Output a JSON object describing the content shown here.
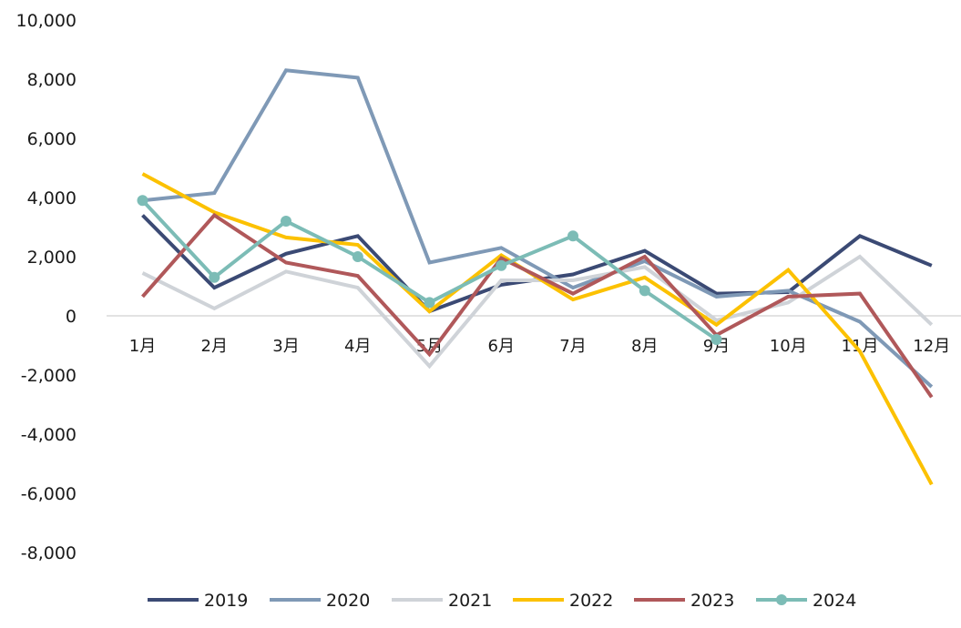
{
  "chart_data": {
    "type": "line",
    "categories": [
      "1月",
      "2月",
      "3月",
      "4月",
      "5月",
      "6月",
      "7月",
      "8月",
      "9月",
      "10月",
      "11月",
      "12月"
    ],
    "ylim": [
      -8000,
      10000
    ],
    "yticks": [
      10000,
      8000,
      6000,
      4000,
      2000,
      0,
      -2000,
      -4000,
      -6000,
      -8000
    ],
    "ytick_labels": [
      "10,000",
      "8,000",
      "6,000",
      "4,000",
      "2,000",
      "0",
      "-2,000",
      "-4,000",
      "-6,000",
      "-8,000"
    ],
    "grid": false,
    "legend": "bottom",
    "series": [
      {
        "name": "2019",
        "color": "#3b4a74",
        "marker": false,
        "values": [
          3400,
          950,
          2100,
          2700,
          150,
          1050,
          1400,
          2200,
          750,
          800,
          2700,
          1700
        ]
      },
      {
        "name": "2020",
        "color": "#7f99b6",
        "marker": false,
        "values": [
          3900,
          4150,
          8300,
          8050,
          1800,
          2300,
          950,
          1850,
          650,
          850,
          -200,
          -2400
        ]
      },
      {
        "name": "2021",
        "color": "#cfd3d8",
        "marker": false,
        "values": [
          1450,
          250,
          1500,
          950,
          -1700,
          1200,
          1200,
          1650,
          -150,
          450,
          2000,
          -300
        ]
      },
      {
        "name": "2022",
        "color": "#fcc100",
        "marker": false,
        "values": [
          4800,
          3500,
          2650,
          2400,
          150,
          2050,
          550,
          1300,
          -300,
          1550,
          -1200,
          -5700
        ]
      },
      {
        "name": "2023",
        "color": "#b0585a",
        "marker": false,
        "values": [
          650,
          3400,
          1800,
          1350,
          -1300,
          1950,
          750,
          2000,
          -650,
          650,
          750,
          -2750
        ]
      },
      {
        "name": "2024",
        "color": "#7cbcb6",
        "marker": true,
        "values": [
          3900,
          1300,
          3200,
          2000,
          450,
          1700,
          2700,
          850,
          -800,
          null,
          null,
          null
        ]
      }
    ]
  }
}
